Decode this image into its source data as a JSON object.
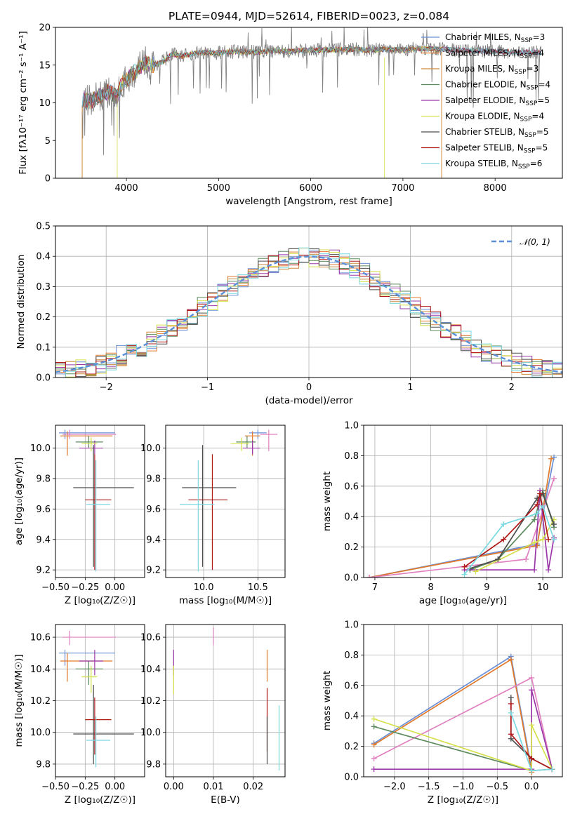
{
  "figure": {
    "title": "PLATE=0944, MJD=52614, FIBERID=0023, z=0.084"
  },
  "series": [
    {
      "name": "Chabrier MILES",
      "nssp": "3",
      "color": "#6b8fd6"
    },
    {
      "name": "Salpeter MILES",
      "nssp": "4",
      "color": "#e07a2c"
    },
    {
      "name": "Kroupa MILES",
      "nssp": "3",
      "color": "#cc8a3c"
    },
    {
      "name": "Chabrier ELODIE",
      "nssp": "4",
      "color": "#5c8a5c"
    },
    {
      "name": "Salpeter ELODIE",
      "nssp": "5",
      "color": "#9a38a8"
    },
    {
      "name": "Kroupa ELODIE",
      "nssp": "4",
      "color": "#d4e04a"
    },
    {
      "name": "Chabrier STELIB",
      "nssp": "5",
      "color": "#4d4d4d"
    },
    {
      "name": "Salpeter STELIB",
      "nssp": "5",
      "color": "#b01818"
    },
    {
      "name": "Kroupa STELIB",
      "nssp": "6",
      "color": "#7ad8e0"
    }
  ],
  "colors": {
    "data": "#808080",
    "pink": "#e080c0",
    "gauss": "#5b8fd9",
    "grid": "#b0b0b0"
  },
  "chart_data": [
    {
      "type": "line",
      "title": "PLATE=0944, MJD=52614, FIBERID=0023, z=0.084",
      "xlabel": "wavelength [Angstrom, rest frame]",
      "ylabel": "Flux [fλ10⁻¹⁷ erg cm⁻² s⁻¹ A⁻¹]",
      "xlim": [
        3230,
        8730
      ],
      "ylim": [
        0,
        20
      ],
      "xticks": [
        4000,
        5000,
        6000,
        7000,
        8000
      ],
      "yticks": [
        0,
        5,
        10,
        15,
        20
      ],
      "spectrum_x": [
        3520,
        3600,
        3700,
        3800,
        3900,
        3950,
        4000,
        4100,
        4200,
        4300,
        4400,
        4500,
        4600,
        4800,
        5000,
        5200,
        5400,
        5600,
        5800,
        6000,
        6200,
        6400,
        6600,
        6800,
        7000,
        7200,
        7400,
        7600,
        7800,
        8000,
        8200,
        8400,
        8500
      ],
      "spectrum_y": [
        10.5,
        10.2,
        10.8,
        11.5,
        10.8,
        12.5,
        13.0,
        14.2,
        15.4,
        15.0,
        15.5,
        16.5,
        16.2,
        16.7,
        16.6,
        16.8,
        16.7,
        16.9,
        16.8,
        17.0,
        17.0,
        17.1,
        17.0,
        17.1,
        17.0,
        17.2,
        17.1,
        17.0,
        16.9,
        16.8,
        16.7,
        16.7,
        16.6
      ],
      "legend": "top-right"
    },
    {
      "type": "bar",
      "xlabel": "(data-model)/error",
      "ylabel": "Normed distribution",
      "xlim": [
        -2.5,
        2.5
      ],
      "ylim": [
        0,
        0.5
      ],
      "xticks": [
        -2,
        -1,
        0,
        1,
        2
      ],
      "yticks": [
        0.0,
        0.1,
        0.2,
        0.3,
        0.4,
        0.5
      ],
      "gauss_label": "𝒩(0, 1)",
      "legend": "top-right",
      "grid": true
    },
    {
      "type": "scatter",
      "xlabel": "Z [log₁₀(Z/Z☉)]",
      "ylabel": "age  [log₁₀(age/yr)]",
      "xlim": [
        -0.5,
        0.25
      ],
      "ylim": [
        9.15,
        10.15
      ],
      "xticks": [
        -0.5,
        -0.25,
        0.0
      ],
      "xtick_labels": [
        "−0.50",
        "−0.25",
        "0.00"
      ],
      "yticks": [
        9.2,
        9.4,
        9.6,
        9.8,
        10.0
      ],
      "grid": true
    },
    {
      "type": "scatter",
      "xlabel": "mass [log₁₀(M/M☉)]",
      "ylabel": "",
      "xlim": [
        9.65,
        10.75
      ],
      "ylim": [
        9.15,
        10.15
      ],
      "xticks": [
        10.0,
        10.5
      ],
      "xtick_labels": [
        "10.0",
        "10.5"
      ],
      "yticks": [
        9.2,
        9.4,
        9.6,
        9.8,
        10.0
      ],
      "grid": true
    },
    {
      "type": "line",
      "xlabel": "age  [log₁₀(age/yr)]",
      "ylabel": "mass weight",
      "xlim": [
        6.8,
        10.35
      ],
      "ylim": [
        0,
        1
      ],
      "xticks": [
        7,
        8,
        9,
        10
      ],
      "xtick_labels": [
        "7",
        "8",
        "9",
        "10"
      ],
      "yticks": [
        0,
        0.2,
        0.4,
        0.6,
        0.8,
        1.0
      ],
      "grid": true
    },
    {
      "type": "scatter",
      "xlabel": "Z [log₁₀(Z/Z☉)]",
      "ylabel": "mass [log₁₀(M/M☉)]",
      "xlim": [
        -0.5,
        0.25
      ],
      "ylim": [
        9.72,
        10.68
      ],
      "xticks": [
        -0.5,
        -0.25,
        0.0
      ],
      "xtick_labels": [
        "−0.50",
        "−0.25",
        "0.00"
      ],
      "yticks": [
        9.8,
        10.0,
        10.2,
        10.4,
        10.6
      ],
      "grid": true
    },
    {
      "type": "scatter",
      "xlabel": "E(B-V)",
      "ylabel": "",
      "xlim": [
        -0.002,
        0.028
      ],
      "ylim": [
        9.72,
        10.68
      ],
      "xticks": [
        0.0,
        0.01,
        0.02
      ],
      "xtick_labels": [
        "0.00",
        "0.01",
        "0.02"
      ],
      "yticks": [
        9.8,
        10.0,
        10.2,
        10.4,
        10.6
      ],
      "grid": true
    },
    {
      "type": "line",
      "xlabel": "Z [log₁₀(Z/Z☉)]",
      "ylabel": "mass weight",
      "xlim": [
        -2.45,
        0.45
      ],
      "ylim": [
        0,
        1
      ],
      "xticks": [
        -2.0,
        -1.5,
        -1.0,
        -0.5,
        0.0
      ],
      "xtick_labels": [
        "−2.0",
        "−1.5",
        "−1.0",
        "−0.5",
        "0.0"
      ],
      "yticks": [
        0,
        0.2,
        0.4,
        0.6,
        0.8,
        1.0
      ],
      "grid": true
    }
  ]
}
